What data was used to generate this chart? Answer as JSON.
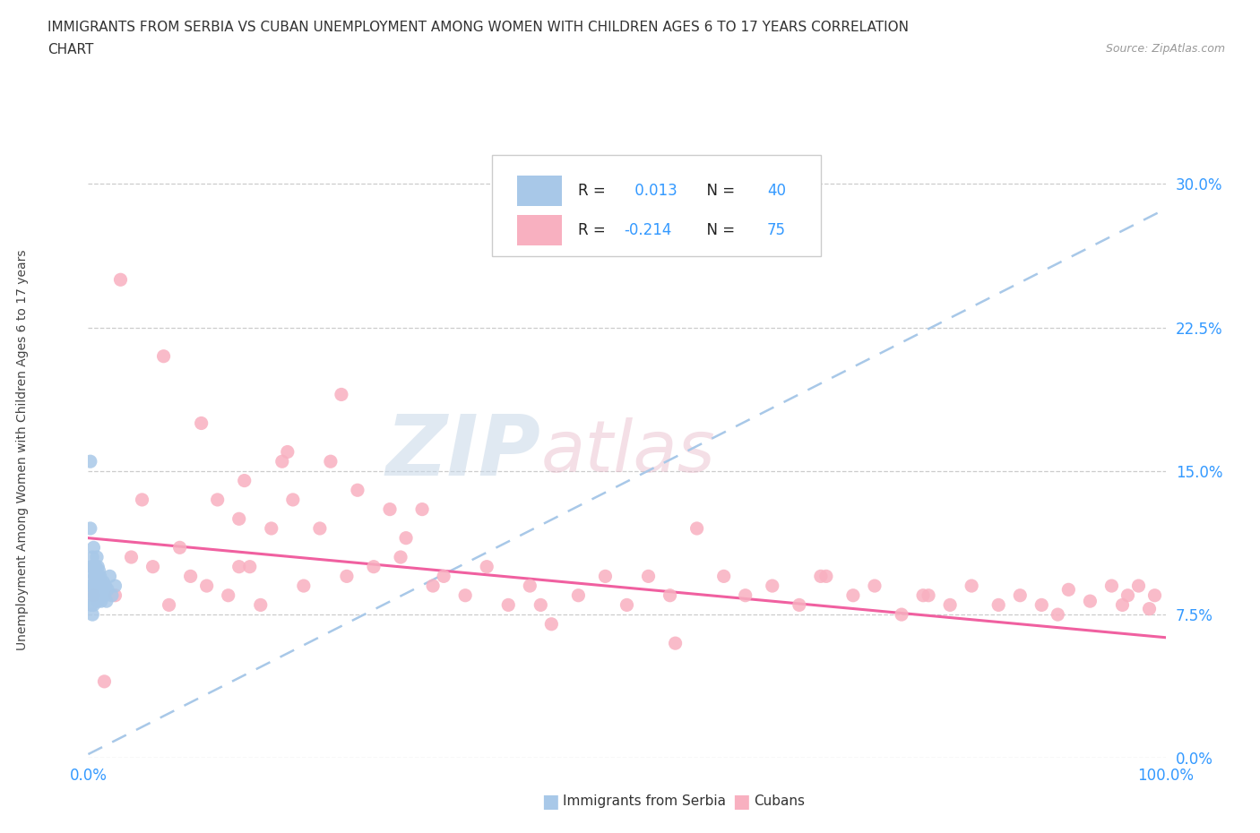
{
  "title_line1": "IMMIGRANTS FROM SERBIA VS CUBAN UNEMPLOYMENT AMONG WOMEN WITH CHILDREN AGES 6 TO 17 YEARS CORRELATION",
  "title_line2": "CHART",
  "source_text": "Source: ZipAtlas.com",
  "ylabel": "Unemployment Among Women with Children Ages 6 to 17 years",
  "xlim": [
    0.0,
    1.0
  ],
  "ylim": [
    0.0,
    0.32
  ],
  "xtick_positions": [
    0.0,
    1.0
  ],
  "xtick_labels": [
    "0.0%",
    "100.0%"
  ],
  "ytick_values": [
    0.0,
    0.075,
    0.15,
    0.225,
    0.3
  ],
  "ytick_labels": [
    "0.0%",
    "7.5%",
    "15.0%",
    "22.5%",
    "30.0%"
  ],
  "serbia_color": "#a8c8e8",
  "cuban_color": "#f8b0c0",
  "trendline_serbia_color": "#a8c8e8",
  "trendline_cuban_color": "#f060a0",
  "R_serbia": 0.013,
  "N_serbia": 40,
  "R_cuban": -0.214,
  "N_cuban": 75,
  "serbia_x": [
    0.002,
    0.002,
    0.003,
    0.003,
    0.003,
    0.004,
    0.004,
    0.004,
    0.004,
    0.005,
    0.005,
    0.005,
    0.005,
    0.006,
    0.006,
    0.006,
    0.007,
    0.007,
    0.007,
    0.008,
    0.008,
    0.008,
    0.009,
    0.009,
    0.009,
    0.01,
    0.01,
    0.011,
    0.011,
    0.012,
    0.012,
    0.013,
    0.014,
    0.015,
    0.016,
    0.017,
    0.018,
    0.02,
    0.022,
    0.025
  ],
  "serbia_y": [
    0.155,
    0.12,
    0.1,
    0.09,
    0.08,
    0.105,
    0.095,
    0.085,
    0.075,
    0.11,
    0.1,
    0.09,
    0.08,
    0.095,
    0.09,
    0.085,
    0.1,
    0.095,
    0.085,
    0.105,
    0.095,
    0.085,
    0.1,
    0.092,
    0.082,
    0.098,
    0.088,
    0.095,
    0.085,
    0.09,
    0.082,
    0.088,
    0.092,
    0.085,
    0.09,
    0.082,
    0.088,
    0.095,
    0.085,
    0.09
  ],
  "cuban_x": [
    0.005,
    0.015,
    0.025,
    0.04,
    0.05,
    0.06,
    0.075,
    0.085,
    0.095,
    0.11,
    0.12,
    0.13,
    0.14,
    0.15,
    0.16,
    0.17,
    0.18,
    0.19,
    0.2,
    0.215,
    0.225,
    0.235,
    0.25,
    0.265,
    0.28,
    0.295,
    0.31,
    0.33,
    0.35,
    0.37,
    0.39,
    0.41,
    0.43,
    0.455,
    0.48,
    0.5,
    0.52,
    0.545,
    0.565,
    0.59,
    0.61,
    0.635,
    0.66,
    0.685,
    0.71,
    0.73,
    0.755,
    0.775,
    0.8,
    0.82,
    0.845,
    0.865,
    0.885,
    0.91,
    0.93,
    0.95,
    0.965,
    0.975,
    0.985,
    0.99,
    0.03,
    0.07,
    0.105,
    0.145,
    0.185,
    0.24,
    0.29,
    0.42,
    0.54,
    0.68,
    0.78,
    0.9,
    0.96,
    0.14,
    0.32
  ],
  "cuban_y": [
    0.085,
    0.04,
    0.085,
    0.105,
    0.135,
    0.1,
    0.08,
    0.11,
    0.095,
    0.09,
    0.135,
    0.085,
    0.125,
    0.1,
    0.08,
    0.12,
    0.155,
    0.135,
    0.09,
    0.12,
    0.155,
    0.19,
    0.14,
    0.1,
    0.13,
    0.115,
    0.13,
    0.095,
    0.085,
    0.1,
    0.08,
    0.09,
    0.07,
    0.085,
    0.095,
    0.08,
    0.095,
    0.06,
    0.12,
    0.095,
    0.085,
    0.09,
    0.08,
    0.095,
    0.085,
    0.09,
    0.075,
    0.085,
    0.08,
    0.09,
    0.08,
    0.085,
    0.08,
    0.088,
    0.082,
    0.09,
    0.085,
    0.09,
    0.078,
    0.085,
    0.25,
    0.21,
    0.175,
    0.145,
    0.16,
    0.095,
    0.105,
    0.08,
    0.085,
    0.095,
    0.085,
    0.075,
    0.08,
    0.1,
    0.09
  ]
}
